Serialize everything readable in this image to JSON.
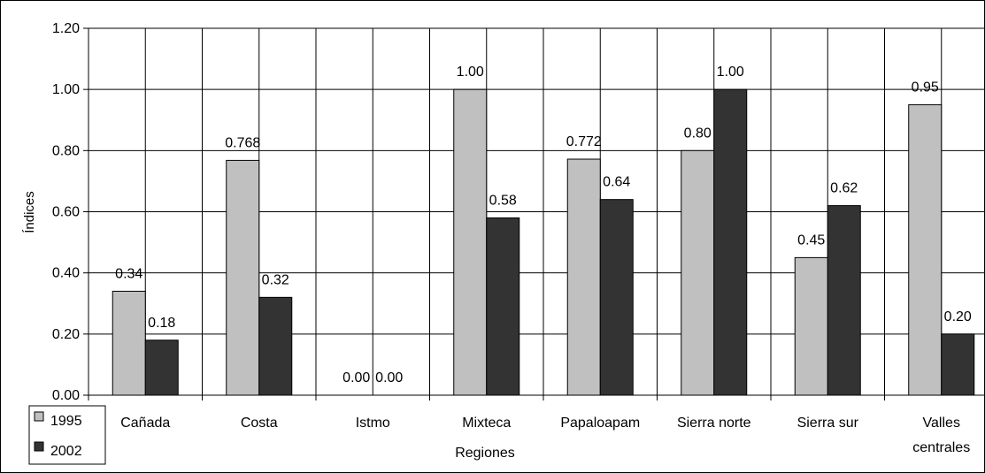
{
  "chart_data": {
    "type": "bar",
    "xlabel": "Regiones",
    "ylabel": "Índices",
    "categories": [
      [
        "Cañada"
      ],
      [
        "Costa"
      ],
      [
        "Istmo"
      ],
      [
        "Mixteca"
      ],
      [
        "Papaloapam"
      ],
      [
        "Sierra norte"
      ],
      [
        "Sierra sur"
      ],
      [
        "Valles",
        "centrales"
      ]
    ],
    "series": [
      {
        "name": "1995",
        "color": "#c0c0c0",
        "values": [
          0.34,
          0.768,
          0.0,
          1.0,
          0.772,
          0.8,
          0.45,
          0.95
        ],
        "labels": [
          "0.34",
          "0.768",
          "0.00",
          "1.00",
          "0.772",
          "0.80",
          "0.45",
          "0.95"
        ]
      },
      {
        "name": "2002",
        "color": "#333333",
        "values": [
          0.18,
          0.32,
          0.0,
          0.58,
          0.64,
          1.0,
          0.62,
          0.2
        ],
        "labels": [
          "0.18",
          "0.32",
          "0.00",
          "0.58",
          "0.64",
          "1.00",
          "0.62",
          "0.20"
        ]
      }
    ],
    "ylim": [
      0,
      1.2
    ],
    "yticks": [
      "0.00",
      "0.20",
      "0.40",
      "0.60",
      "0.80",
      "1.00",
      "1.20"
    ],
    "grid": true,
    "legend_position": "bottom-left"
  }
}
